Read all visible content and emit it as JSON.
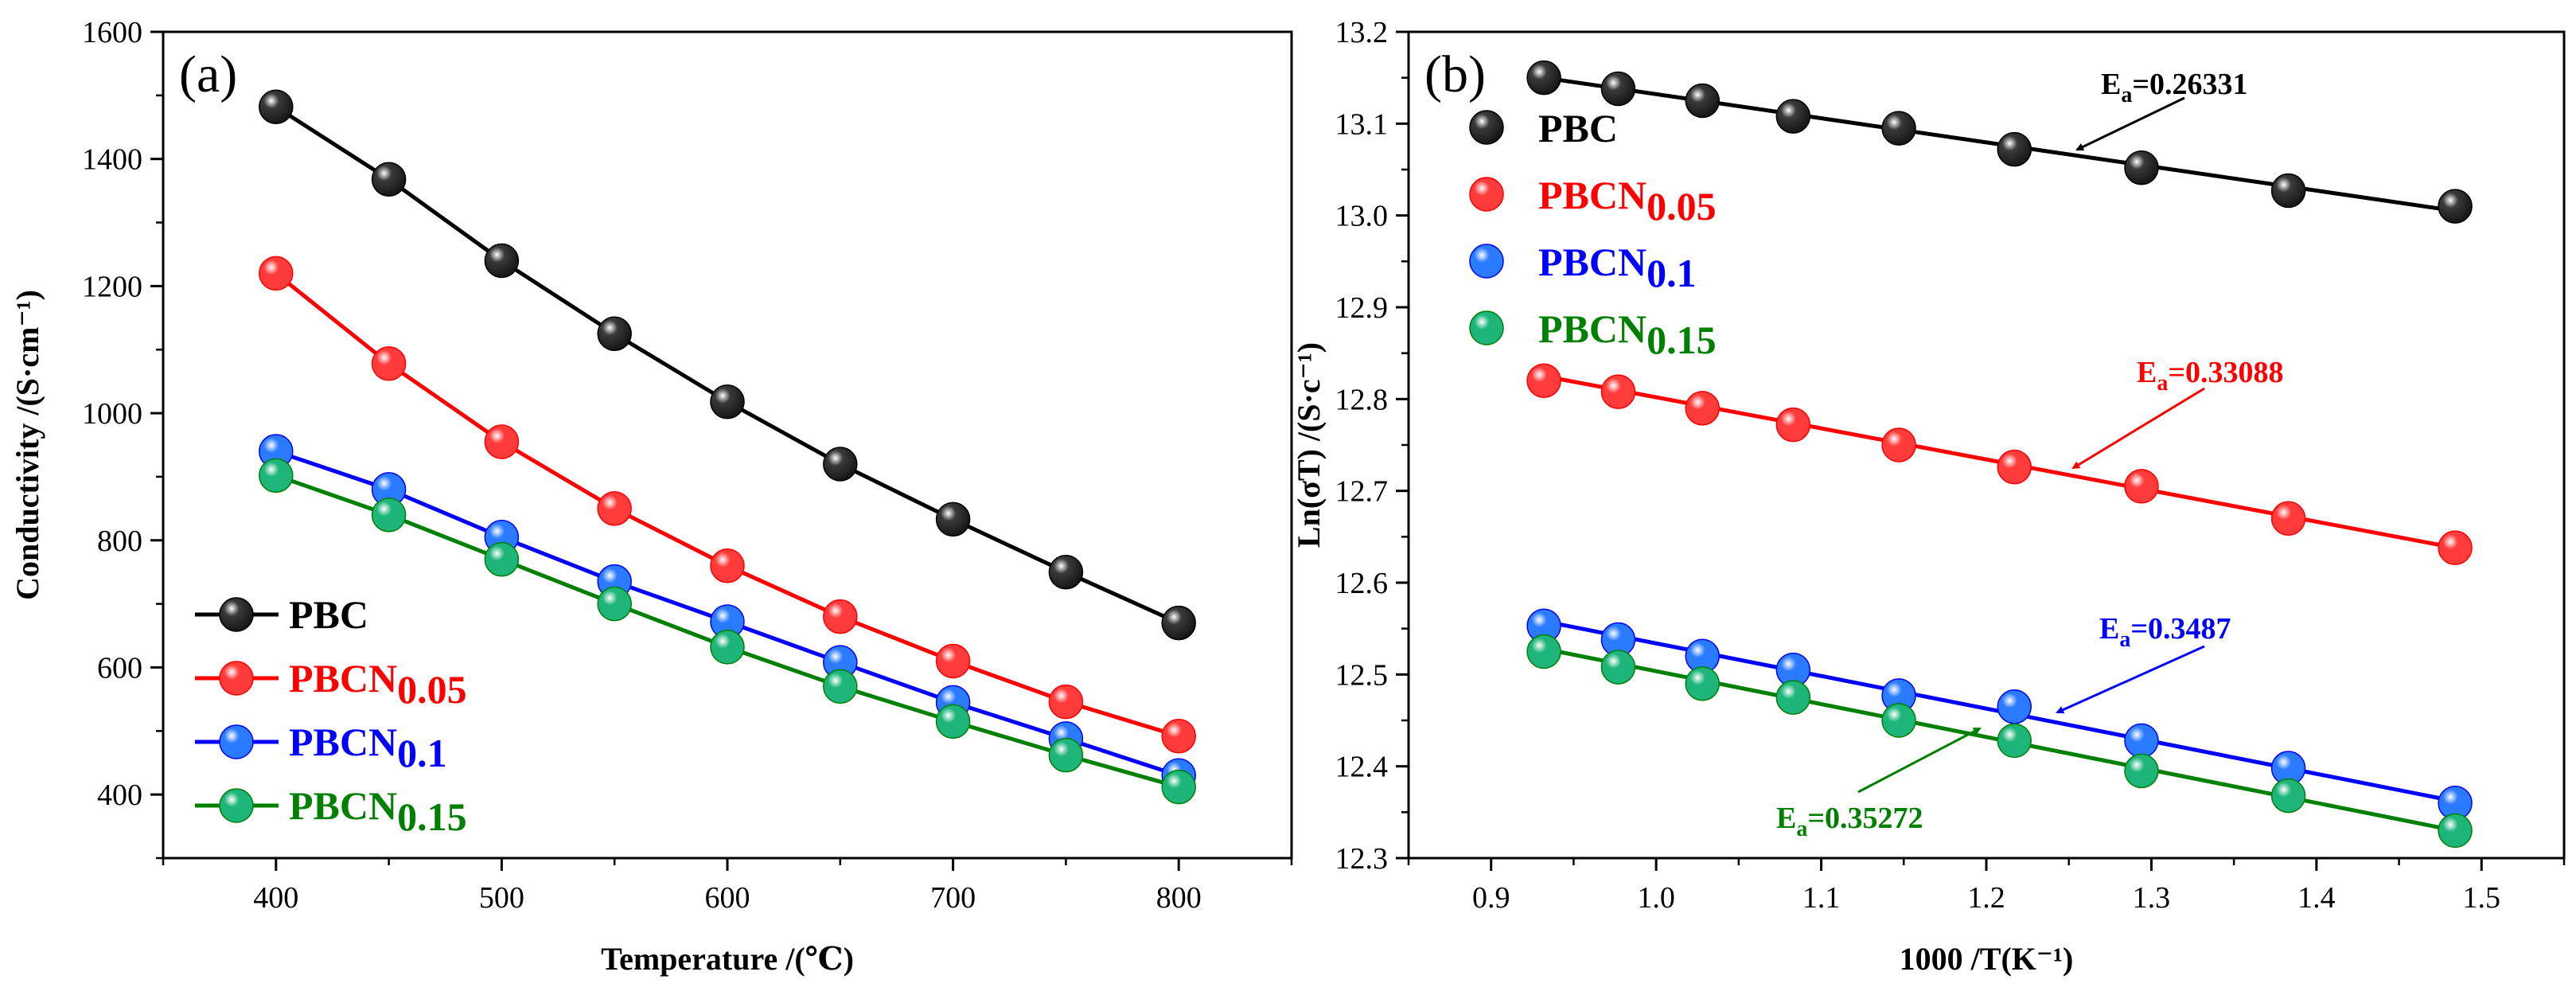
{
  "chart_data": [
    {
      "type": "line",
      "panel_label": "(a)",
      "xlabel": "Temperature /(℃)",
      "ylabel": "Conductivity /(S·cm⁻¹)",
      "xlim": [
        350,
        850
      ],
      "ylim": [
        300,
        1600
      ],
      "xticks": [
        "400",
        "500",
        "600",
        "700",
        "800"
      ],
      "xtick_values": [
        400,
        500,
        600,
        700,
        800
      ],
      "yticks": [
        "400",
        "600",
        "800",
        "1000",
        "1200",
        "1400",
        "1600"
      ],
      "ytick_values": [
        400,
        600,
        800,
        1000,
        1200,
        1400,
        1600
      ],
      "x": [
        400,
        450,
        500,
        550,
        600,
        650,
        700,
        750,
        800
      ],
      "legend_position": "bottom-left",
      "series": [
        {
          "name": "PBC",
          "label": "PBC",
          "sub": "",
          "color": "#000000",
          "values": [
            1482,
            1368,
            1240,
            1125,
            1018,
            920,
            833,
            750,
            670
          ]
        },
        {
          "name": "PBCN0.05",
          "label": "PBCN",
          "sub": "0.05",
          "color": "#ff0000",
          "values": [
            1220,
            1078,
            955,
            850,
            760,
            680,
            610,
            546,
            492
          ]
        },
        {
          "name": "PBCN0.1",
          "label": "PBCN",
          "sub": "0.1",
          "color": "#0000ff",
          "values": [
            940,
            880,
            805,
            735,
            672,
            608,
            545,
            488,
            430
          ]
        },
        {
          "name": "PBCN0.15",
          "label": "PBCN",
          "sub": "0.15",
          "color": "#008000",
          "values": [
            902,
            840,
            770,
            700,
            632,
            570,
            515,
            462,
            412
          ]
        }
      ]
    },
    {
      "type": "scatter",
      "panel_label": "(b)",
      "xlabel": "1000 /T(K⁻¹)",
      "ylabel": "Ln(σT) /(S·c⁻¹)",
      "xlim": [
        0.85,
        1.55
      ],
      "ylim": [
        12.3,
        13.2
      ],
      "xticks": [
        "0.9",
        "1.0",
        "1.1",
        "1.2",
        "1.3",
        "1.4",
        "1.5"
      ],
      "xtick_values": [
        0.9,
        1.0,
        1.1,
        1.2,
        1.3,
        1.4,
        1.5
      ],
      "yticks": [
        "12.3",
        "12.4",
        "12.5",
        "12.6",
        "12.7",
        "12.8",
        "12.9",
        "13.0",
        "13.1",
        "13.2"
      ],
      "ytick_values": [
        12.3,
        12.4,
        12.5,
        12.6,
        12.7,
        12.8,
        12.9,
        13.0,
        13.1,
        13.2
      ],
      "x": [
        0.932,
        0.977,
        1.028,
        1.083,
        1.147,
        1.217,
        1.294,
        1.383,
        1.484
      ],
      "legend_position": "top-left",
      "series": [
        {
          "name": "PBC",
          "label": "PBC",
          "sub": "",
          "color": "#000000",
          "values": [
            13.15,
            13.138,
            13.125,
            13.108,
            13.095,
            13.072,
            13.052,
            13.027,
            13.01
          ],
          "fit": [
            13.15,
            13.005
          ],
          "ea_label": "E",
          "ea_sub": "a",
          "ea_value": "=0.26331"
        },
        {
          "name": "PBCN0.05",
          "label": "PBCN",
          "sub": "0.05",
          "color": "#ff0000",
          "values": [
            12.82,
            12.808,
            12.79,
            12.772,
            12.75,
            12.726,
            12.705,
            12.67,
            12.638
          ],
          "fit": [
            12.825,
            12.638
          ],
          "ea_label": "E",
          "ea_sub": "a",
          "ea_value": "=0.33088"
        },
        {
          "name": "PBCN0.1",
          "label": "PBCN",
          "sub": "0.1",
          "color": "#0000ff",
          "values": [
            12.553,
            12.538,
            12.52,
            12.505,
            12.477,
            12.465,
            12.428,
            12.398,
            12.36
          ],
          "fit": [
            12.558,
            12.362
          ],
          "ea_label": "E",
          "ea_sub": "a",
          "ea_value": "=0.3487"
        },
        {
          "name": "PBCN0.15",
          "label": "PBCN",
          "sub": "0.15",
          "color": "#008000",
          "values": [
            12.525,
            12.508,
            12.49,
            12.475,
            12.45,
            12.428,
            12.395,
            12.368,
            12.33
          ],
          "fit": [
            12.528,
            12.33
          ],
          "ea_label": "E",
          "ea_sub": "a",
          "ea_value": "=0.35272"
        }
      ]
    }
  ]
}
